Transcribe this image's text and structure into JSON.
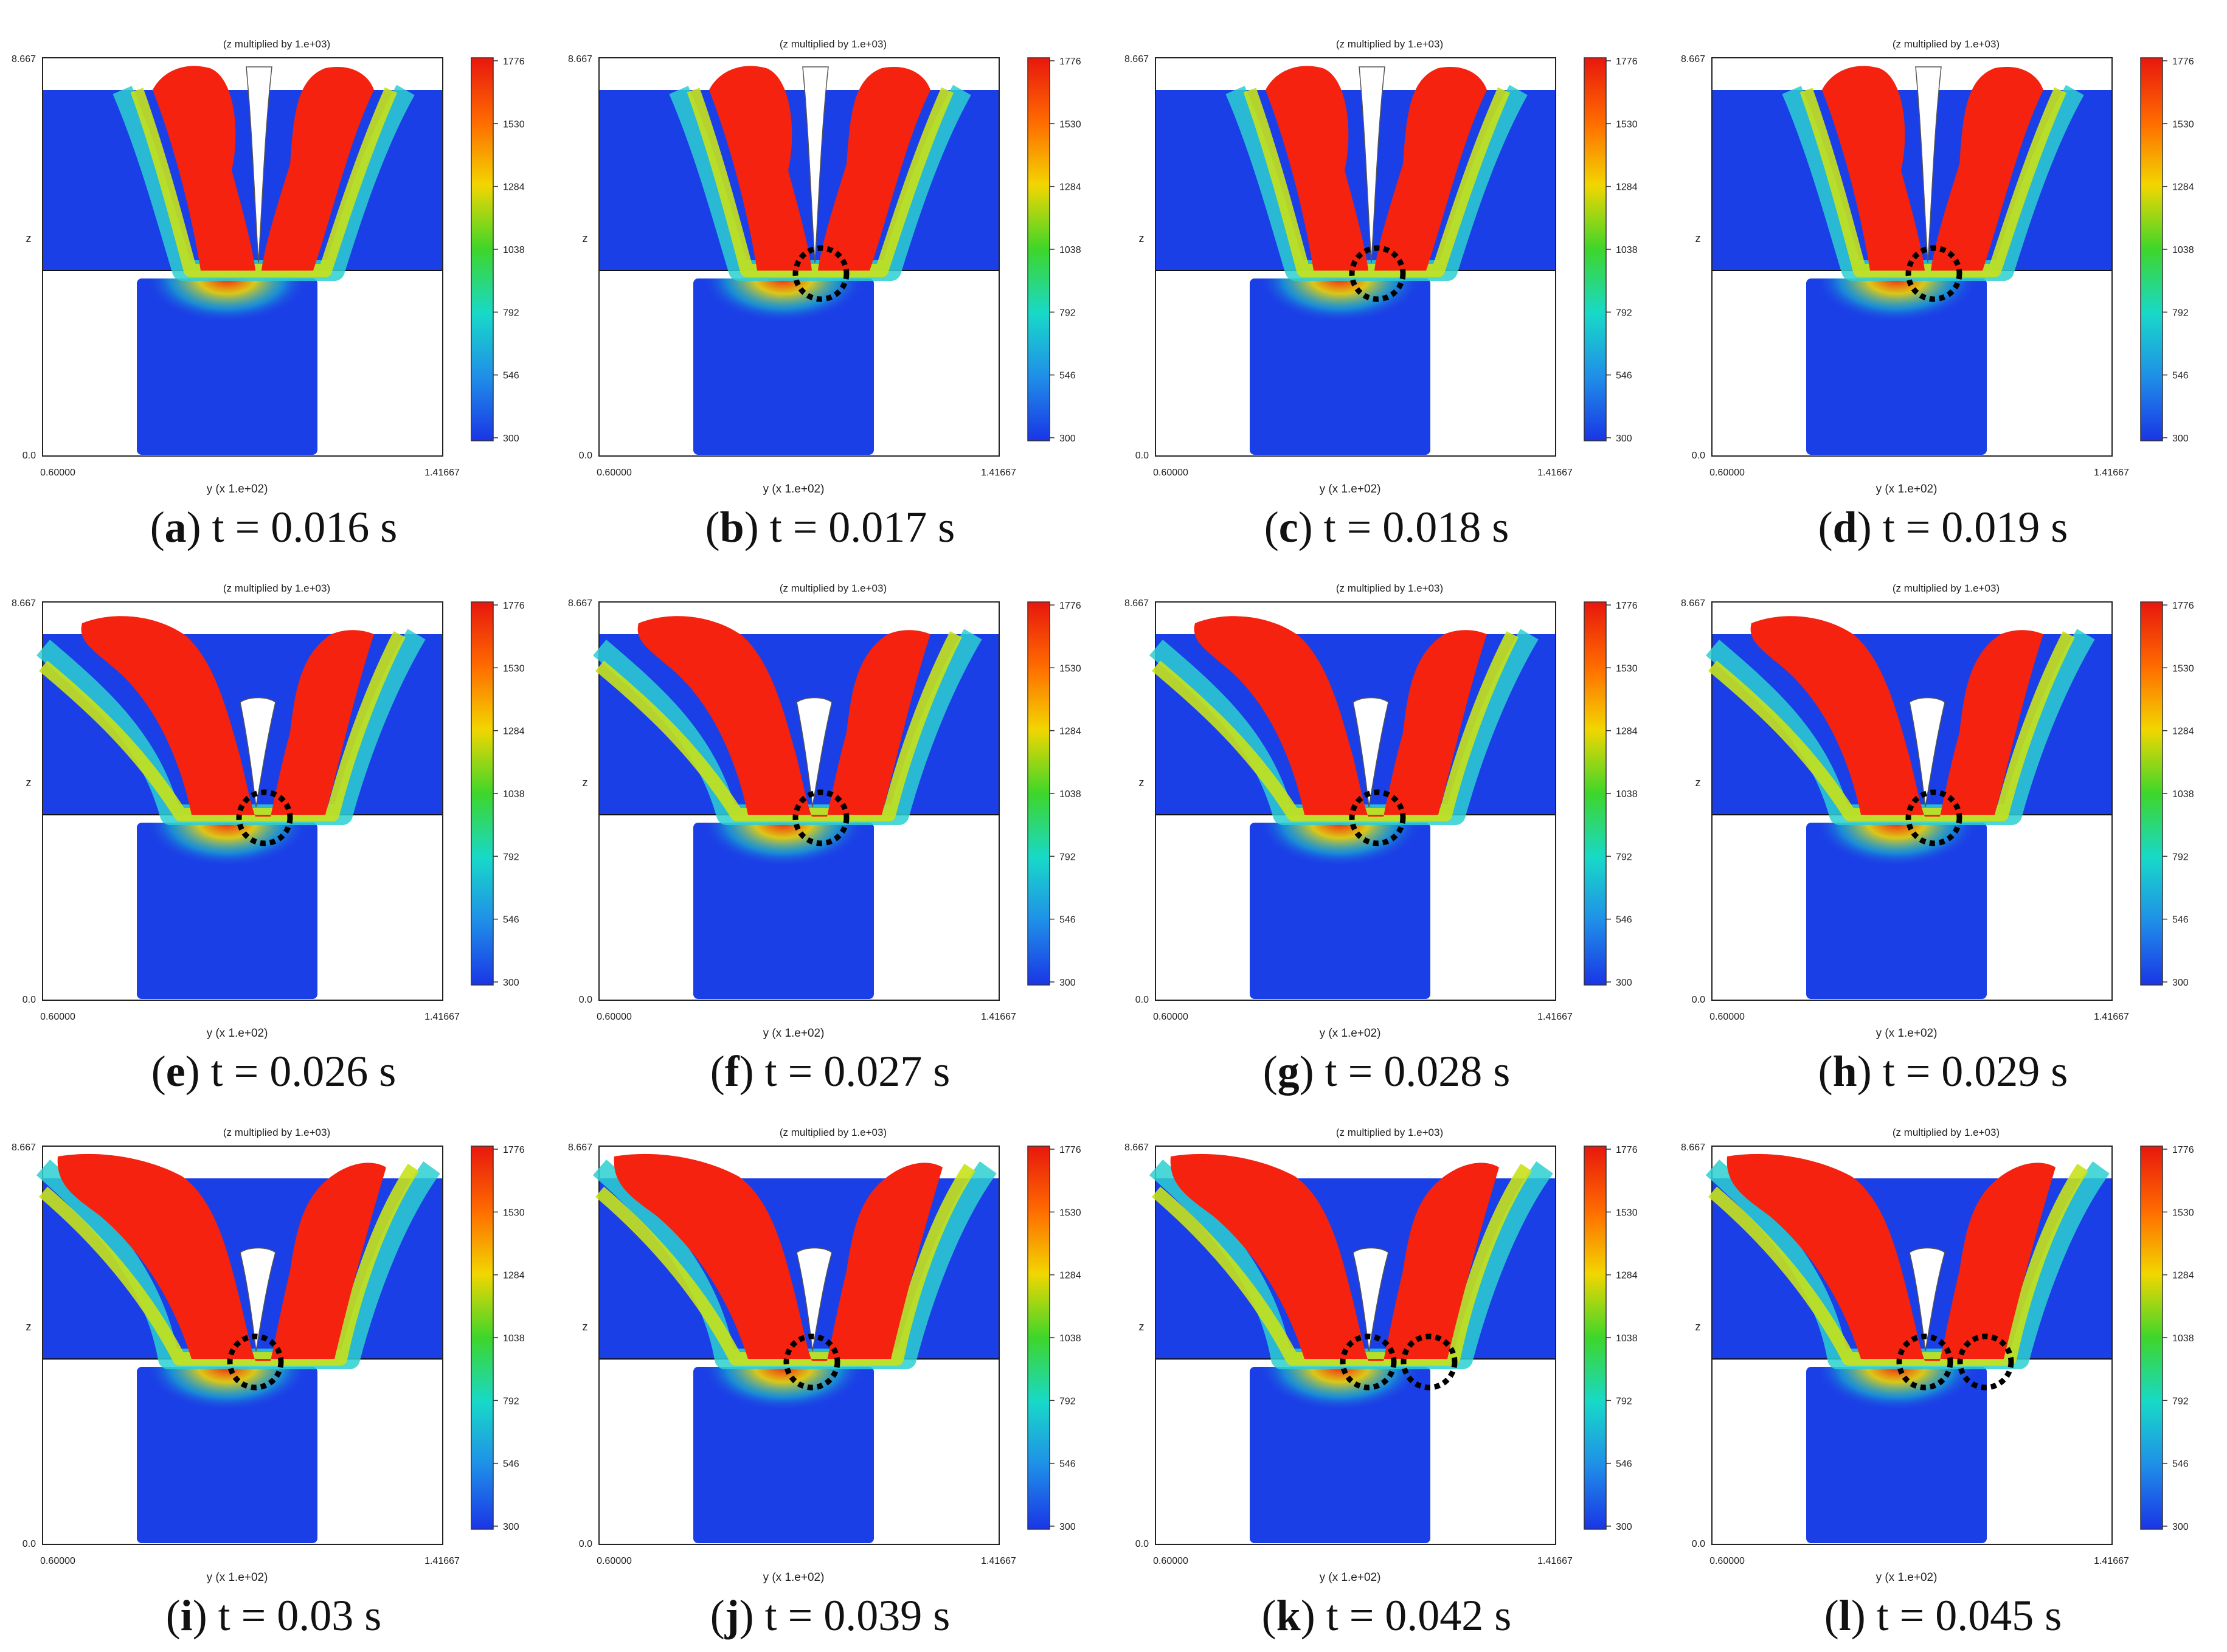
{
  "figure": {
    "plot_header": "(z multiplied by  1.e+03)",
    "axis": {
      "z_top_tick": "8.667",
      "z_bottom_tick": "0.0",
      "z_label": "z",
      "y_left_tick": "0.60000",
      "y_right_tick": "1.41667",
      "y_label": "y  (x 1.e+02)"
    },
    "colorbar": {
      "ticks": [
        "1776",
        "1530",
        "1284",
        "1038",
        "792",
        "546",
        "300"
      ],
      "colors": [
        "#e8170e",
        "#ff6a00",
        "#f2d600",
        "#3ed62a",
        "#18d9c8",
        "#1f8fe8",
        "#1a35e6"
      ]
    },
    "colors": {
      "molten": "#f4220f",
      "solid": "#1b3fe6",
      "frame": "#222222",
      "marker": "#000000"
    },
    "panels": [
      {
        "label": "a",
        "time": "t = 0.016 s",
        "markers": 0,
        "shape": 0
      },
      {
        "label": "b",
        "time": "t = 0.017 s",
        "markers": 1,
        "shape": 0
      },
      {
        "label": "c",
        "time": "t = 0.018 s",
        "markers": 1,
        "shape": 0
      },
      {
        "label": "d",
        "time": "t = 0.019 s",
        "markers": 1,
        "shape": 0
      },
      {
        "label": "e",
        "time": "t = 0.026 s",
        "markers": 1,
        "shape": 1
      },
      {
        "label": "f",
        "time": "t = 0.027 s",
        "markers": 1,
        "shape": 1
      },
      {
        "label": "g",
        "time": "t = 0.028 s",
        "markers": 1,
        "shape": 1
      },
      {
        "label": "h",
        "time": "t = 0.029 s",
        "markers": 1,
        "shape": 1
      },
      {
        "label": "i",
        "time": "t = 0.03 s",
        "markers": 1,
        "shape": 2
      },
      {
        "label": "j",
        "time": "t = 0.039 s",
        "markers": 1,
        "shape": 2
      },
      {
        "label": "k",
        "time": "t = 0.042 s",
        "markers": 2,
        "shape": 2
      },
      {
        "label": "l",
        "time": "t = 0.045 s",
        "markers": 2,
        "shape": 2
      }
    ]
  }
}
